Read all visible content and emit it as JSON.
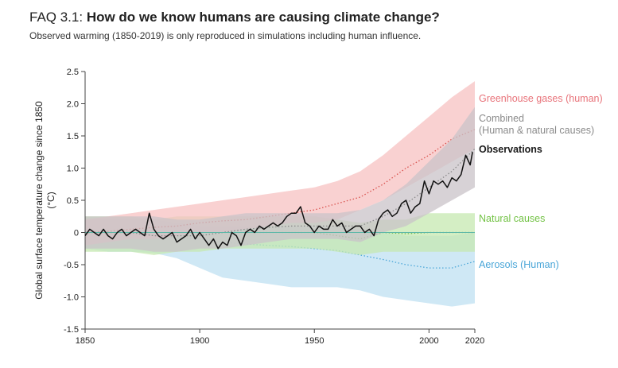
{
  "header": {
    "title_prefix": "FAQ 3.1: ",
    "title_main": "How do we know humans are causing climate change?",
    "subtitle": "Observed warming (1850-2019) is only reproduced in simulations including human influence."
  },
  "chart_data": {
    "type": "line",
    "title": "FAQ 3.1: How do we know humans are causing climate change?",
    "subtitle": "Observed warming (1850-2019) is only reproduced in simulations including human influence.",
    "xlabel": "",
    "ylabel": "Global surface temperature change since 1850 (°C)",
    "ylabel_line1": "Global surface temperature change since 1850",
    "ylabel_line2": "(°C)",
    "xlim": [
      1850,
      2020
    ],
    "ylim": [
      -1.5,
      2.5
    ],
    "x_ticks": [
      1850,
      1900,
      1950,
      2000,
      2020
    ],
    "y_ticks": [
      {
        "value": 2.5,
        "label": "2.5"
      },
      {
        "value": 2.0,
        "label": "2.0"
      },
      {
        "value": 1.5,
        "label": "1.5"
      },
      {
        "value": 1.0,
        "label": "1.0"
      },
      {
        "value": 0.5,
        "label": "0.5"
      },
      {
        "value": 0.0,
        "label": "0"
      },
      {
        "value": -0.5,
        "label": "-0.5"
      },
      {
        "value": -1.0,
        "label": "-1.0"
      },
      {
        "value": -1.5,
        "label": "-1.5"
      }
    ],
    "grid": false,
    "legend": "inline-right",
    "bands": [
      {
        "name": "Aerosols (Human)",
        "color": "#bfe0f2",
        "line_color": "#4aa6d8",
        "line_style": "dotted",
        "x": [
          1850,
          1860,
          1870,
          1880,
          1890,
          1900,
          1910,
          1920,
          1930,
          1940,
          1950,
          1960,
          1970,
          1980,
          1990,
          2000,
          2010,
          2020
        ],
        "lower": [
          -0.25,
          -0.3,
          -0.3,
          -0.32,
          -0.4,
          -0.55,
          -0.7,
          -0.75,
          -0.8,
          -0.85,
          -0.85,
          -0.85,
          -0.9,
          -1.0,
          -1.05,
          -1.1,
          -1.15,
          -1.1
        ],
        "upper": [
          0.2,
          0.2,
          0.2,
          0.2,
          0.15,
          0.1,
          0.1,
          0.1,
          0.1,
          0.1,
          0.1,
          0.1,
          0.05,
          0.0,
          -0.05,
          -0.05,
          -0.05,
          0.0
        ],
        "central": [
          -0.02,
          -0.03,
          -0.04,
          -0.05,
          -0.08,
          -0.1,
          -0.15,
          -0.18,
          -0.2,
          -0.22,
          -0.25,
          -0.28,
          -0.35,
          -0.42,
          -0.5,
          -0.55,
          -0.55,
          -0.45
        ]
      },
      {
        "name": "Natural causes",
        "color": "#c6e8b0",
        "line_color": "#6cc04a",
        "line_style": "dotted",
        "x": [
          1850,
          1860,
          1870,
          1880,
          1890,
          1900,
          1910,
          1920,
          1930,
          1940,
          1950,
          1960,
          1970,
          1980,
          1990,
          2000,
          2010,
          2020
        ],
        "lower": [
          -0.3,
          -0.3,
          -0.3,
          -0.35,
          -0.3,
          -0.3,
          -0.25,
          -0.25,
          -0.25,
          -0.25,
          -0.25,
          -0.3,
          -0.35,
          -0.3,
          -0.3,
          -0.3,
          -0.3,
          -0.3
        ],
        "upper": [
          0.25,
          0.25,
          0.25,
          0.2,
          0.25,
          0.25,
          0.25,
          0.25,
          0.25,
          0.25,
          0.25,
          0.2,
          0.15,
          0.2,
          0.2,
          0.3,
          0.3,
          0.3
        ],
        "central": [
          0.0,
          0.0,
          0.0,
          -0.05,
          0.0,
          0.0,
          0.0,
          0.0,
          0.0,
          0.0,
          0.0,
          -0.05,
          -0.1,
          0.0,
          -0.02,
          0.0,
          0.0,
          0.0
        ]
      },
      {
        "name": "Greenhouse gases (human)",
        "color": "#f7c1c1",
        "line_color": "#d9534f",
        "line_style": "dotted",
        "x": [
          1850,
          1860,
          1870,
          1880,
          1890,
          1900,
          1910,
          1920,
          1930,
          1940,
          1950,
          1960,
          1970,
          1980,
          1990,
          2000,
          2010,
          2020
        ],
        "lower": [
          -0.2,
          -0.15,
          -0.1,
          -0.1,
          -0.05,
          0.0,
          0.0,
          0.05,
          0.1,
          0.15,
          0.15,
          0.2,
          0.35,
          0.5,
          0.7,
          0.9,
          1.1,
          1.3
        ],
        "upper": [
          0.2,
          0.25,
          0.3,
          0.35,
          0.4,
          0.45,
          0.5,
          0.55,
          0.6,
          0.65,
          0.7,
          0.8,
          0.95,
          1.2,
          1.5,
          1.8,
          2.1,
          2.35
        ],
        "central": [
          0.0,
          0.02,
          0.05,
          0.08,
          0.1,
          0.15,
          0.18,
          0.2,
          0.25,
          0.3,
          0.35,
          0.45,
          0.55,
          0.75,
          1.0,
          1.2,
          1.45,
          1.6
        ]
      },
      {
        "name": "Combined (Human & natural causes)",
        "color": "#c9c3c8",
        "line_color": "#8a8a8a",
        "line_style": "dotted",
        "x": [
          1850,
          1860,
          1870,
          1880,
          1890,
          1900,
          1910,
          1920,
          1930,
          1940,
          1950,
          1960,
          1970,
          1980,
          1990,
          2000,
          2010,
          2020
        ],
        "lower": [
          -0.25,
          -0.25,
          -0.25,
          -0.3,
          -0.3,
          -0.25,
          -0.25,
          -0.2,
          -0.15,
          -0.1,
          -0.1,
          -0.1,
          -0.15,
          0.0,
          0.1,
          0.3,
          0.5,
          0.7
        ],
        "upper": [
          0.25,
          0.25,
          0.25,
          0.25,
          0.2,
          0.2,
          0.25,
          0.3,
          0.3,
          0.3,
          0.3,
          0.3,
          0.35,
          0.5,
          0.75,
          1.1,
          1.45,
          1.95
        ],
        "central": [
          0.0,
          0.0,
          0.0,
          -0.05,
          -0.05,
          -0.05,
          0.0,
          0.05,
          0.08,
          0.1,
          0.1,
          0.1,
          0.1,
          0.25,
          0.45,
          0.7,
          0.95,
          1.3
        ]
      }
    ],
    "observations": {
      "name": "Observations",
      "color": "#111111",
      "x": [
        1850,
        1852,
        1854,
        1856,
        1858,
        1860,
        1862,
        1864,
        1866,
        1868,
        1870,
        1872,
        1874,
        1876,
        1878,
        1880,
        1882,
        1884,
        1886,
        1888,
        1890,
        1892,
        1894,
        1896,
        1898,
        1900,
        1902,
        1904,
        1906,
        1908,
        1910,
        1912,
        1914,
        1916,
        1918,
        1920,
        1922,
        1924,
        1926,
        1928,
        1930,
        1932,
        1934,
        1936,
        1938,
        1940,
        1942,
        1944,
        1946,
        1948,
        1950,
        1952,
        1954,
        1956,
        1958,
        1960,
        1962,
        1964,
        1966,
        1968,
        1970,
        1972,
        1974,
        1976,
        1978,
        1980,
        1982,
        1984,
        1986,
        1988,
        1990,
        1992,
        1994,
        1996,
        1998,
        2000,
        2002,
        2004,
        2006,
        2008,
        2010,
        2012,
        2014,
        2016,
        2018,
        2019
      ],
      "y": [
        -0.05,
        0.05,
        0.0,
        -0.05,
        0.05,
        -0.05,
        -0.1,
        0.0,
        0.05,
        -0.05,
        0.0,
        0.05,
        0.0,
        -0.05,
        0.3,
        0.05,
        -0.05,
        -0.1,
        -0.05,
        0.0,
        -0.15,
        -0.1,
        -0.05,
        0.05,
        -0.1,
        0.0,
        -0.1,
        -0.2,
        -0.1,
        -0.25,
        -0.15,
        -0.2,
        0.0,
        -0.05,
        -0.2,
        0.0,
        0.05,
        0.0,
        0.1,
        0.05,
        0.1,
        0.15,
        0.1,
        0.15,
        0.25,
        0.3,
        0.3,
        0.4,
        0.15,
        0.1,
        0.0,
        0.1,
        0.05,
        0.05,
        0.2,
        0.1,
        0.15,
        0.0,
        0.05,
        0.1,
        0.1,
        0.0,
        0.05,
        -0.05,
        0.2,
        0.3,
        0.35,
        0.25,
        0.3,
        0.45,
        0.5,
        0.3,
        0.4,
        0.45,
        0.8,
        0.6,
        0.8,
        0.75,
        0.8,
        0.7,
        0.85,
        0.8,
        0.9,
        1.2,
        1.05,
        1.25
      ]
    },
    "labels": {
      "greenhouse": "Greenhouse gases (human)",
      "combined_line1": "Combined",
      "combined_line2": "(Human & natural causes)",
      "observations": "Observations",
      "natural": "Natural causes",
      "aerosols": "Aerosols (Human)"
    },
    "label_colors": {
      "greenhouse": "#e8737a",
      "combined": "#8a8a8a",
      "observations": "#1a1a1a",
      "natural": "#72c244",
      "aerosols": "#4aa6d8"
    },
    "zero_line_color": "#5fb8a8"
  }
}
